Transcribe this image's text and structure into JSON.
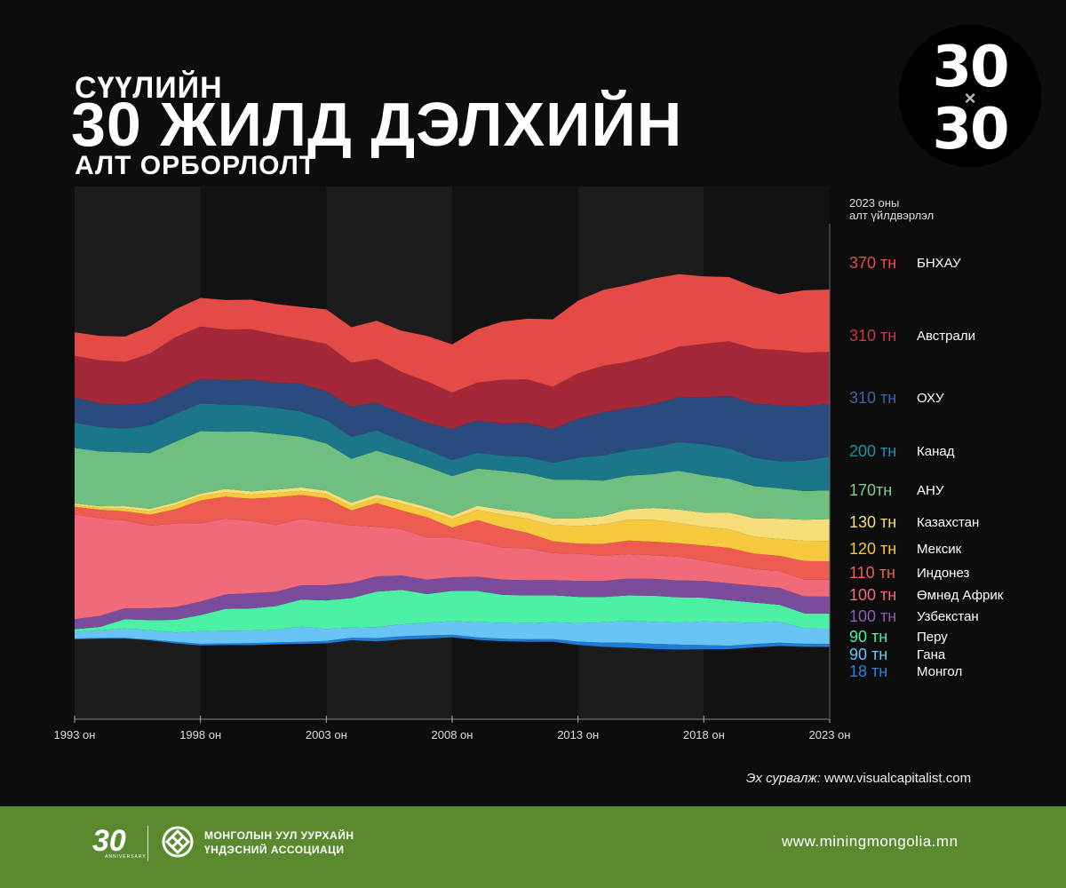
{
  "title": {
    "line1": "СҮҮЛИЙН",
    "line2": "30 ЖИЛД ДЭЛХИЙН",
    "line3": "АЛТ ОРБОРЛОЛТ"
  },
  "badge": {
    "top": "30",
    "x": "×",
    "bottom": "30"
  },
  "column_header": {
    "line1": "2023 оны",
    "line2": "алт үйлдвэрлэл"
  },
  "source": {
    "label": "Эх сурвалж:",
    "value": "www.visualcapitalist.com"
  },
  "footer": {
    "logo_30": "30",
    "logo_sub": "ANNIVERSARY",
    "org_line1": "МОНГОЛЫН УУЛ УУРХАЙН",
    "org_line2": "ҮНДЭСНИЙ АССОЦИАЦИ",
    "website": "www.miningmongolia.mn"
  },
  "chart_data": {
    "type": "area",
    "stacked": true,
    "x_ticks": [
      "1993 он",
      "1998 он",
      "2003 он",
      "2008 он",
      "2013 он",
      "2018 он",
      "2023 он"
    ],
    "x_tick_years": [
      1993,
      1998,
      2003,
      2008,
      2013,
      2018,
      2023
    ],
    "x": [
      1993,
      1994,
      1995,
      1996,
      1997,
      1998,
      1999,
      2000,
      2001,
      2002,
      2003,
      2004,
      2005,
      2006,
      2007,
      2008,
      2009,
      2010,
      2011,
      2012,
      2013,
      2014,
      2015,
      2016,
      2017,
      2018,
      2019,
      2020,
      2021,
      2022,
      2023
    ],
    "legend": [
      {
        "value": "370 тн",
        "name": "БНХАУ",
        "color": "#e44b46"
      },
      {
        "value": "310 тн",
        "name": "Австрали",
        "color": "#a52838"
      },
      {
        "value": "310 тн",
        "name": "ОХУ",
        "color": "#2b4b7e"
      },
      {
        "value": "200 тн",
        "name": "Канад",
        "color": "#1a7688"
      },
      {
        "value": "170тн",
        "name": "АНУ",
        "color": "#6fc080"
      },
      {
        "value": "130 тн",
        "name": "Казахстан",
        "color": "#f5de7a"
      },
      {
        "value": "120 тн",
        "name": "Мексик",
        "color": "#f6c83c"
      },
      {
        "value": "110 тн",
        "name": "Индонез",
        "color": "#ee5b50"
      },
      {
        "value": "100 тн",
        "name": "Өмнөд Африк",
        "color": "#f06a7a"
      },
      {
        "value": "100 тн",
        "name": "Узбекстан",
        "color": "#7a4c9c"
      },
      {
        "value": "90 тн",
        "name": "Перу",
        "color": "#4cf0a4"
      },
      {
        "value": "90 тн",
        "name": "Гана",
        "color": "#68c4f4"
      },
      {
        "value": "18 тн",
        "name": "Монгол",
        "color": "#1e7bd6"
      }
    ],
    "legend_value_colors": [
      "#e84c46",
      "#c23a48",
      "#3a67a8",
      "#1f94a8",
      "#7fd08c",
      "#f3dc7a",
      "#f7c640",
      "#ef5e52",
      "#f36b7c",
      "#8a5cb0",
      "#4cf0a4",
      "#6ac8f8",
      "#2a82dc"
    ],
    "series": [
      {
        "name": "БНХАУ",
        "values": [
          140,
          145,
          150,
          160,
          165,
          170,
          175,
          175,
          180,
          190,
          205,
          210,
          225,
          245,
          270,
          285,
          315,
          345,
          360,
          400,
          430,
          450,
          455,
          455,
          430,
          400,
          380,
          365,
          330,
          370,
          370
        ]
      },
      {
        "name": "Австрали",
        "values": [
          245,
          255,
          255,
          290,
          315,
          310,
          300,
          300,
          285,
          265,
          280,
          260,
          260,
          245,
          245,
          215,
          225,
          260,
          260,
          250,
          270,
          275,
          275,
          290,
          300,
          315,
          325,
          325,
          330,
          315,
          310
        ]
      },
      {
        "name": "ОХУ",
        "values": [
          150,
          140,
          140,
          135,
          140,
          145,
          145,
          150,
          150,
          165,
          170,
          180,
          165,
          160,
          160,
          185,
          190,
          190,
          200,
          200,
          230,
          255,
          250,
          255,
          265,
          280,
          310,
          320,
          330,
          325,
          310
        ]
      },
      {
        "name": "Канад",
        "values": [
          150,
          145,
          140,
          165,
          165,
          165,
          160,
          155,
          155,
          150,
          140,
          130,
          120,
          105,
          100,
          95,
          95,
          90,
          100,
          100,
          130,
          150,
          150,
          160,
          170,
          185,
          180,
          170,
          160,
          180,
          200
        ]
      },
      {
        "name": "АНУ",
        "values": [
          330,
          325,
          320,
          330,
          360,
          370,
          340,
          355,
          330,
          300,
          280,
          260,
          260,
          250,
          240,
          235,
          220,
          230,
          230,
          230,
          230,
          210,
          200,
          200,
          230,
          220,
          200,
          190,
          180,
          170,
          170
        ]
      },
      {
        "name": "Казахстан",
        "values": [
          10,
          10,
          15,
          15,
          15,
          15,
          20,
          20,
          20,
          20,
          20,
          20,
          20,
          20,
          20,
          20,
          25,
          30,
          35,
          40,
          45,
          50,
          60,
          70,
          80,
          85,
          100,
          110,
          120,
          125,
          130
        ]
      },
      {
        "name": "Мексик",
        "values": [
          10,
          10,
          15,
          20,
          25,
          25,
          25,
          25,
          25,
          25,
          25,
          25,
          30,
          40,
          40,
          50,
          60,
          75,
          85,
          95,
          105,
          115,
          125,
          130,
          120,
          110,
          110,
          100,
          100,
          120,
          120
        ]
      },
      {
        "name": "Индонез",
        "values": [
          45,
          50,
          55,
          65,
          85,
          135,
          130,
          130,
          165,
          140,
          140,
          90,
          140,
          110,
          120,
          60,
          130,
          120,
          90,
          70,
          60,
          70,
          80,
          80,
          80,
          90,
          100,
          90,
          90,
          110,
          110
        ]
      },
      {
        "name": "Өмнөд Африк",
        "values": [
          620,
          580,
          520,
          490,
          495,
          465,
          450,
          430,
          395,
          395,
          375,
          340,
          295,
          275,
          250,
          235,
          205,
          190,
          190,
          160,
          160,
          150,
          145,
          140,
          140,
          120,
          110,
          100,
          100,
          100,
          100
        ]
      },
      {
        "name": "Узбекстан",
        "values": [
          60,
          65,
          65,
          70,
          75,
          80,
          85,
          90,
          85,
          85,
          90,
          90,
          90,
          85,
          85,
          80,
          85,
          90,
          90,
          90,
          95,
          95,
          100,
          100,
          100,
          100,
          100,
          100,
          100,
          100,
          100
        ]
      },
      {
        "name": "Перу",
        "values": [
          15,
          20,
          55,
          60,
          75,
          95,
          130,
          130,
          140,
          160,
          170,
          175,
          210,
          205,
          170,
          180,
          185,
          165,
          165,
          160,
          155,
          150,
          150,
          155,
          150,
          140,
          130,
          120,
          100,
          90,
          90
        ]
      },
      {
        "name": "Гана",
        "values": [
          40,
          45,
          55,
          55,
          55,
          75,
          75,
          75,
          75,
          90,
          70,
          60,
          65,
          70,
          75,
          80,
          90,
          95,
          95,
          100,
          110,
          120,
          130,
          130,
          130,
          140,
          140,
          125,
          125,
          90,
          90
        ]
      },
      {
        "name": "Монгол",
        "values": [
          5,
          5,
          5,
          5,
          10,
          10,
          10,
          12,
          12,
          12,
          15,
          15,
          20,
          20,
          20,
          15,
          15,
          15,
          15,
          15,
          20,
          25,
          30,
          30,
          30,
          25,
          20,
          20,
          20,
          18,
          18
        ]
      }
    ]
  }
}
